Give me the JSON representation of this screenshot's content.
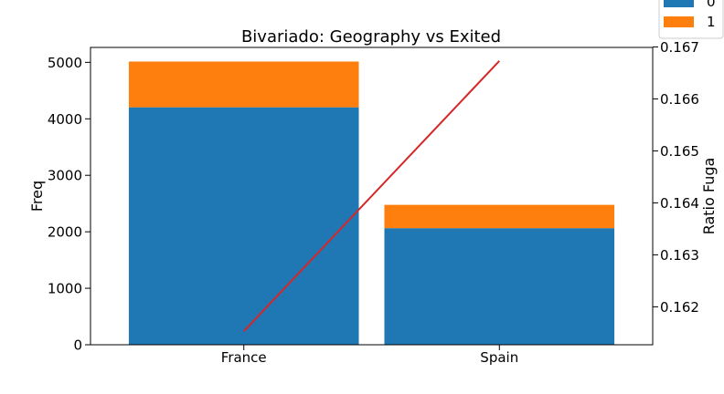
{
  "chart_data": {
    "type": "bar",
    "stacked": true,
    "title": "Bivariado: Geography vs Exited",
    "xlabel": "",
    "ylabel": "Freq",
    "y2label": "Ratio Fuga",
    "categories": [
      "France",
      "Spain"
    ],
    "series": [
      {
        "name": "0",
        "values": [
          4204,
          2064
        ],
        "color": "#1f77b4"
      },
      {
        "name": "1",
        "values": [
          810,
          413
        ],
        "color": "#ff7f0e"
      }
    ],
    "line": {
      "axis": "right",
      "values": [
        0.16153,
        0.16673
      ],
      "color": "#d62728"
    },
    "ylim": [
      0,
      5264
    ],
    "y2lim": [
      0.16127,
      0.16699
    ],
    "yticks": [
      0,
      1000,
      2000,
      3000,
      4000,
      5000
    ],
    "y2ticks": [
      0.162,
      0.163,
      0.164,
      0.165,
      0.166,
      0.167
    ],
    "legend_position": "top-right",
    "grid": false
  }
}
